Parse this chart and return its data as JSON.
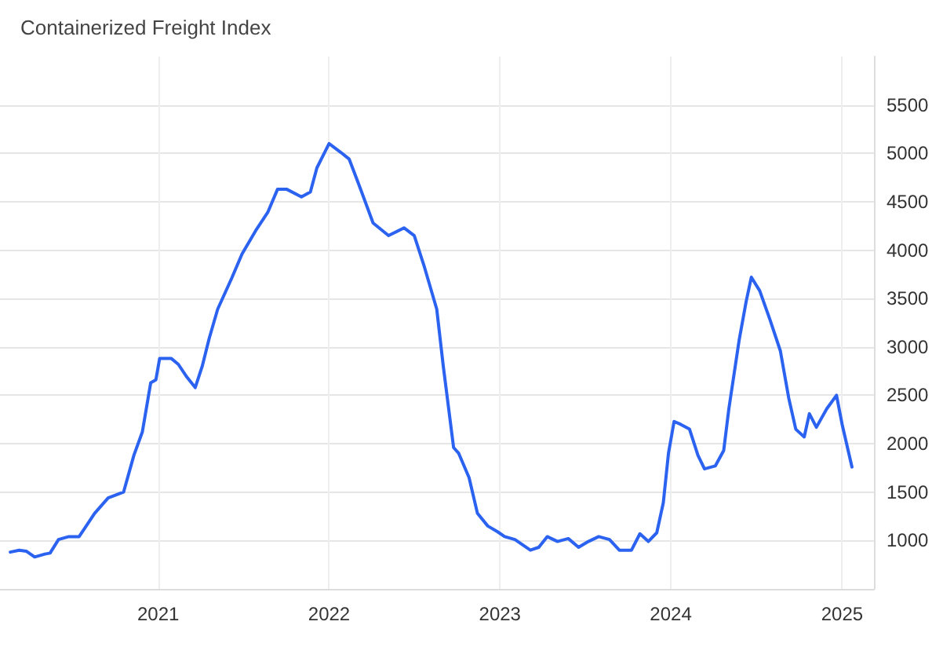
{
  "chart_data": {
    "type": "line",
    "title": "Containerized Freight Index",
    "series": [
      {
        "color": "#2b63f0",
        "x": [
          "2020-02-20",
          "2020-03-10",
          "2020-03-25",
          "2020-04-12",
          "2020-05-04",
          "2020-05-15",
          "2020-06-02",
          "2020-06-24",
          "2020-07-16",
          "2020-07-27",
          "2020-08-18",
          "2020-09-16",
          "2020-10-19",
          "2020-11-10",
          "2020-11-28",
          "2020-12-16",
          "2020-12-27",
          "2021-01-04",
          "2021-01-29",
          "2021-02-13",
          "2021-03-03",
          "2021-03-21",
          "2021-04-05",
          "2021-04-20",
          "2021-05-08",
          "2021-06-07",
          "2021-06-29",
          "2021-07-28",
          "2021-08-23",
          "2021-09-13",
          "2021-10-02",
          "2021-11-03",
          "2021-11-22",
          "2021-12-06",
          "2022-01-01",
          "2022-01-26",
          "2022-02-13",
          "2022-03-07",
          "2022-04-05",
          "2022-05-08",
          "2022-06-10",
          "2022-07-02",
          "2022-07-24",
          "2022-08-19",
          "2022-09-02",
          "2022-09-24",
          "2022-10-05",
          "2022-10-27",
          "2022-11-14",
          "2022-12-06",
          "2022-12-27",
          "2023-01-11",
          "2023-02-02",
          "2023-03-07",
          "2023-03-25",
          "2023-04-12",
          "2023-05-04",
          "2023-05-27",
          "2023-06-18",
          "2023-07-09",
          "2023-07-31",
          "2023-08-23",
          "2023-09-13",
          "2023-10-09",
          "2023-10-27",
          "2023-11-14",
          "2023-12-02",
          "2023-12-16",
          "2023-12-27",
          "2024-01-08",
          "2024-01-22",
          "2024-02-10",
          "2024-02-28",
          "2024-03-13",
          "2024-04-05",
          "2024-04-23",
          "2024-05-04",
          "2024-05-26",
          "2024-06-10",
          "2024-06-21",
          "2024-07-09",
          "2024-07-31",
          "2024-08-22",
          "2024-09-09",
          "2024-09-24",
          "2024-10-12",
          "2024-10-23",
          "2024-11-07",
          "2024-11-29",
          "2024-12-20",
          "2025-01-01",
          "2025-01-22"
        ],
        "values": [
          880,
          900,
          890,
          830,
          860,
          870,
          1010,
          1040,
          1040,
          1120,
          1280,
          1440,
          1500,
          1880,
          2120,
          2630,
          2660,
          2880,
          2880,
          2820,
          2690,
          2580,
          2800,
          3090,
          3390,
          3710,
          3960,
          4200,
          4390,
          4630,
          4630,
          4550,
          4600,
          4850,
          5100,
          5010,
          4940,
          4660,
          4280,
          4150,
          4230,
          4150,
          3820,
          3390,
          2800,
          1960,
          1900,
          1650,
          1280,
          1150,
          1090,
          1040,
          1010,
          900,
          930,
          1040,
          990,
          1020,
          930,
          990,
          1040,
          1010,
          900,
          900,
          1070,
          990,
          1080,
          1390,
          1900,
          2230,
          2200,
          2150,
          1880,
          1740,
          1770,
          1930,
          2360,
          3070,
          3470,
          3720,
          3580,
          3280,
          2960,
          2470,
          2150,
          2070,
          2310,
          2170,
          2360,
          2500,
          2200,
          1760
        ]
      }
    ],
    "xlim": [
      "2020-01-29",
      "2025-03-10"
    ],
    "xticks": [
      {
        "value": "2021",
        "label": "2021"
      },
      {
        "value": "2022",
        "label": "2022"
      },
      {
        "value": "2023",
        "label": "2023"
      },
      {
        "value": "2024",
        "label": "2024"
      },
      {
        "value": "2025",
        "label": "2025"
      }
    ],
    "ylim": [
      500,
      6000
    ],
    "yticks": [
      {
        "value": 500,
        "label": null
      },
      1000,
      1500,
      2000,
      2500,
      3000,
      3500,
      4000,
      4500,
      5000,
      5500
    ],
    "grid": true,
    "marker": "none",
    "line_style": "solid"
  }
}
